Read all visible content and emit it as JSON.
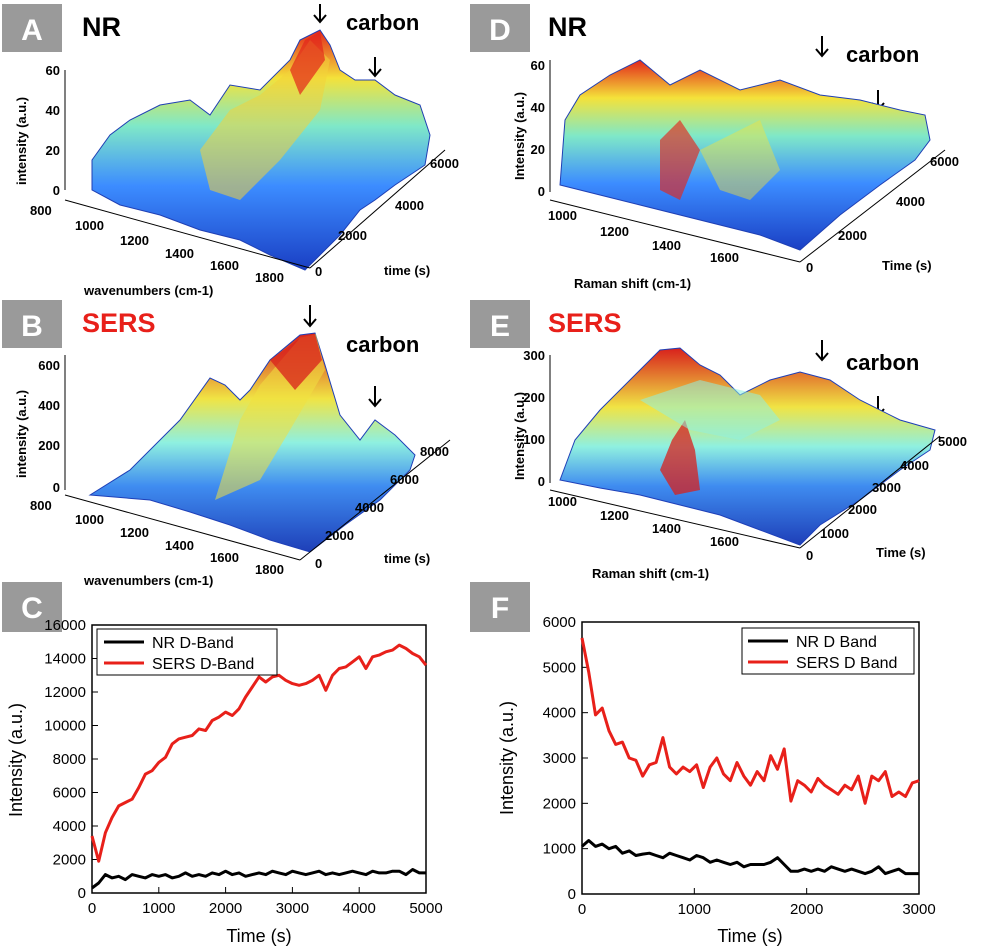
{
  "colors": {
    "nr_line": "#000000",
    "sers_line": "#e8201a",
    "title_nr": "#000000",
    "title_sers": "#e8201a",
    "letter_box": "#9a9a9a"
  },
  "panels3d": [
    {
      "letter": "A",
      "title": "NR",
      "title_color": "#000000",
      "annotation": "carbon",
      "xlabel": "wavenumbers (cm-1)",
      "ylabel": "intensity (a.u.)",
      "zlabel": "time (s)",
      "x_ticks": [
        "800",
        "1000",
        "1200",
        "1400",
        "1600",
        "1800"
      ],
      "z_ticks": [
        "60",
        "40",
        "20",
        "0"
      ],
      "t_ticks": [
        "0",
        "2000",
        "4000",
        "6000"
      ]
    },
    {
      "letter": "B",
      "title": "SERS",
      "title_color": "#e8201a",
      "annotation": "carbon",
      "xlabel": "wavenumbers (cm-1)",
      "ylabel": "intensity (a.u.)",
      "zlabel": "time (s)",
      "x_ticks": [
        "800",
        "1000",
        "1200",
        "1400",
        "1600",
        "1800"
      ],
      "z_ticks": [
        "600",
        "400",
        "200",
        "0"
      ],
      "t_ticks": [
        "0",
        "2000",
        "4000",
        "6000",
        "8000"
      ]
    },
    {
      "letter": "D",
      "title": "NR",
      "title_color": "#000000",
      "annotation": "carbon",
      "xlabel": "Raman shift (cm-1)",
      "ylabel": "Intensity (a.u.)",
      "zlabel": "Time (s)",
      "x_ticks": [
        "1000",
        "1200",
        "1400",
        "1600"
      ],
      "z_ticks": [
        "60",
        "40",
        "20",
        "0"
      ],
      "t_ticks": [
        "0",
        "2000",
        "4000",
        "6000"
      ]
    },
    {
      "letter": "E",
      "title": "SERS",
      "title_color": "#e8201a",
      "annotation": "carbon",
      "xlabel": "Raman shift (cm-1)",
      "ylabel": "Intensity (a.u.)",
      "zlabel": "Time (s)",
      "x_ticks": [
        "1000",
        "1200",
        "1400",
        "1600"
      ],
      "z_ticks": [
        "300",
        "200",
        "100",
        "0"
      ],
      "t_ticks": [
        "0",
        "1000",
        "2000",
        "3000",
        "4000",
        "5000"
      ]
    }
  ],
  "panels2d": [
    {
      "letter": "C",
      "xlabel": "Time (s)",
      "ylabel": "Intensity (a.u.)",
      "x_ticks": [
        "0",
        "1000",
        "2000",
        "3000",
        "4000",
        "5000"
      ],
      "y_ticks": [
        "0",
        "2000",
        "4000",
        "6000",
        "8000",
        "10000",
        "12000",
        "14000",
        "16000"
      ],
      "legend": [
        "NR D-Band",
        "SERS D-Band"
      ]
    },
    {
      "letter": "F",
      "xlabel": "Time (s)",
      "ylabel": "Intensity (a.u.)",
      "x_ticks": [
        "0",
        "1000",
        "2000",
        "3000"
      ],
      "y_ticks": [
        "0",
        "1000",
        "2000",
        "3000",
        "4000",
        "5000",
        "6000"
      ],
      "legend": [
        "NR D Band",
        "SERS D Band"
      ]
    }
  ],
  "chart_data": [
    {
      "type": "line",
      "panel": "C",
      "xlabel": "Time (s)",
      "ylabel": "Intensity (a.u.)",
      "xlim": [
        0,
        5000
      ],
      "ylim": [
        0,
        16000
      ],
      "x": [
        0,
        100,
        200,
        300,
        400,
        500,
        600,
        700,
        800,
        900,
        1000,
        1100,
        1200,
        1300,
        1400,
        1500,
        1600,
        1700,
        1800,
        1900,
        2000,
        2100,
        2200,
        2300,
        2400,
        2500,
        2600,
        2700,
        2800,
        2900,
        3000,
        3100,
        3200,
        3300,
        3400,
        3500,
        3600,
        3700,
        3800,
        3900,
        4000,
        4100,
        4200,
        4300,
        4400,
        4500,
        4600,
        4700,
        4800,
        4900,
        5000
      ],
      "series": [
        {
          "name": "NR D-Band",
          "color": "#000000",
          "values": [
            300,
            600,
            1100,
            900,
            1000,
            800,
            1100,
            1000,
            900,
            1100,
            1000,
            1100,
            900,
            1000,
            1200,
            1000,
            1100,
            1000,
            1200,
            1100,
            1300,
            1100,
            1200,
            1000,
            1100,
            1200,
            1100,
            1300,
            1200,
            1100,
            1300,
            1200,
            1100,
            1200,
            1300,
            1100,
            1200,
            1100,
            1200,
            1300,
            1200,
            1100,
            1300,
            1200,
            1200,
            1300,
            1300,
            1100,
            1400,
            1200,
            1200
          ]
        },
        {
          "name": "SERS D-Band",
          "color": "#e8201a",
          "values": [
            3400,
            1900,
            3600,
            4500,
            5200,
            5400,
            5600,
            6300,
            7100,
            7300,
            7800,
            8100,
            8900,
            9200,
            9300,
            9400,
            9800,
            9700,
            10300,
            10500,
            10800,
            10600,
            11000,
            11700,
            12300,
            12900,
            12600,
            12900,
            13000,
            12700,
            12500,
            12400,
            12500,
            12700,
            13000,
            12100,
            13000,
            13400,
            13500,
            13800,
            14100,
            13400,
            14100,
            14200,
            14400,
            14500,
            14800,
            14600,
            14300,
            14100,
            13600
          ]
        }
      ]
    },
    {
      "type": "line",
      "panel": "F",
      "xlabel": "Time (s)",
      "ylabel": "Intensity (a.u.)",
      "xlim": [
        0,
        3000
      ],
      "ylim": [
        0,
        6000
      ],
      "x": [
        0,
        60,
        120,
        180,
        240,
        300,
        360,
        420,
        480,
        540,
        600,
        660,
        720,
        780,
        840,
        900,
        960,
        1020,
        1080,
        1140,
        1200,
        1260,
        1320,
        1380,
        1440,
        1500,
        1560,
        1620,
        1680,
        1740,
        1800,
        1860,
        1920,
        1980,
        2040,
        2100,
        2160,
        2220,
        2280,
        2340,
        2400,
        2460,
        2520,
        2580,
        2640,
        2700,
        2760,
        2820,
        2880,
        2940,
        3000
      ],
      "series": [
        {
          "name": "NR D Band",
          "color": "#000000",
          "values": [
            1050,
            1180,
            1050,
            1100,
            1000,
            1050,
            900,
            950,
            850,
            880,
            900,
            850,
            800,
            900,
            850,
            800,
            750,
            850,
            800,
            700,
            750,
            700,
            650,
            700,
            600,
            650,
            650,
            650,
            700,
            800,
            650,
            500,
            500,
            550,
            500,
            550,
            500,
            600,
            550,
            500,
            550,
            500,
            450,
            500,
            600,
            450,
            500,
            550,
            450,
            450,
            450
          ]
        },
        {
          "name": "SERS D Band",
          "color": "#e8201a",
          "values": [
            5650,
            4900,
            3950,
            4100,
            3600,
            3300,
            3350,
            3000,
            2950,
            2600,
            2850,
            2900,
            3450,
            2800,
            2650,
            2800,
            2700,
            2850,
            2350,
            2800,
            3000,
            2650,
            2500,
            2900,
            2600,
            2400,
            2700,
            2500,
            3050,
            2750,
            3200,
            2050,
            2500,
            2400,
            2250,
            2550,
            2400,
            2300,
            2200,
            2400,
            2300,
            2600,
            2000,
            2600,
            2500,
            2700,
            2150,
            2250,
            2150,
            2450,
            2500
          ]
        }
      ]
    }
  ]
}
